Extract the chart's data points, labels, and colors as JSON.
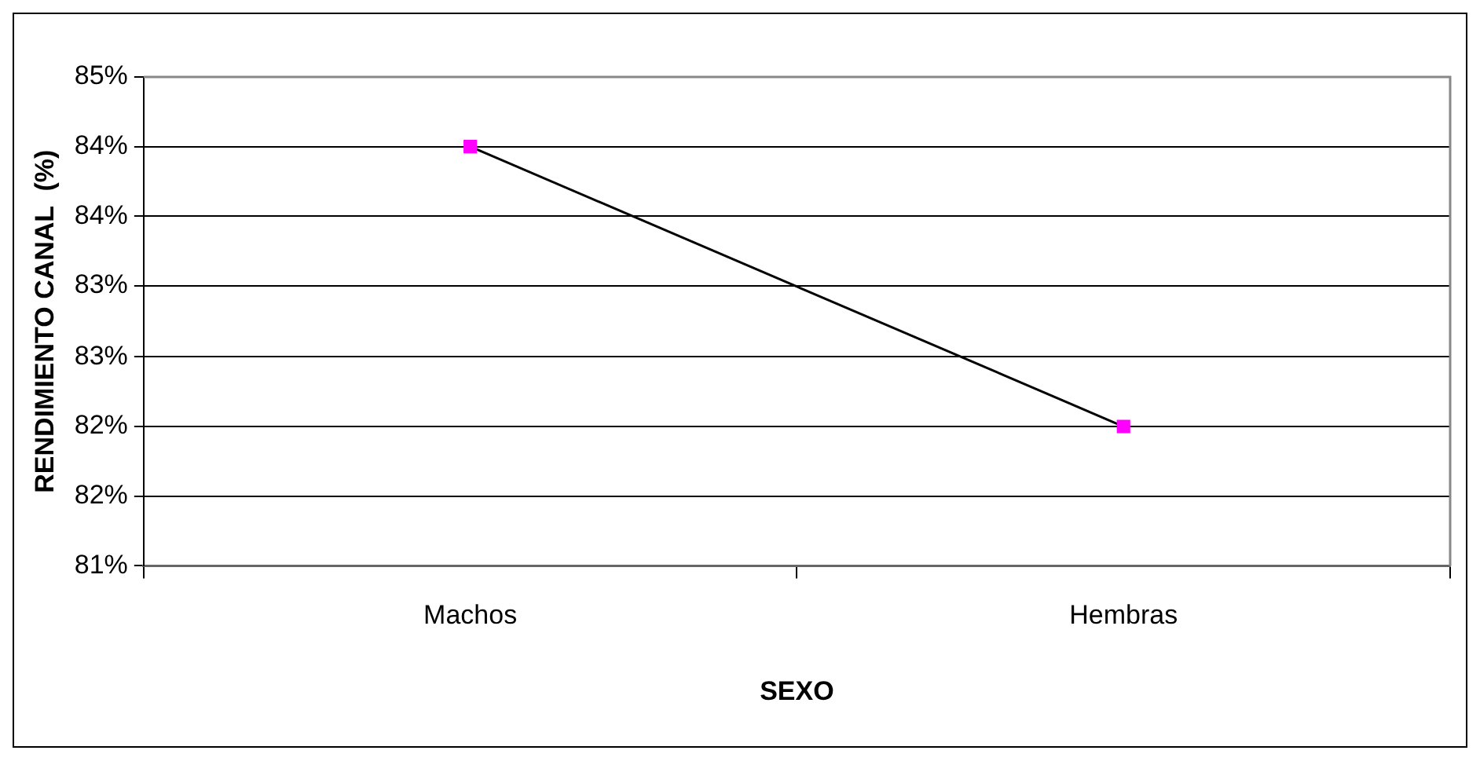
{
  "chart_data": {
    "type": "line",
    "xlabel": "SEXO",
    "ylabel": "RENDIMIENTO CANAL  (%)",
    "categories": [
      "Machos",
      "Hembras"
    ],
    "series": [
      {
        "color": "#ff00ff",
        "values": [
          84.43,
          82.14
        ]
      }
    ],
    "marker": "square",
    "grid": "y",
    "legend": false,
    "ylim": [
      81,
      85
    ],
    "yticks": [
      {
        "value": 81,
        "label": "81%"
      },
      {
        "value": 81.57,
        "label": "82%"
      },
      {
        "value": 82.14,
        "label": "82%"
      },
      {
        "value": 82.71,
        "label": "83%"
      },
      {
        "value": 83.29,
        "label": "83%"
      },
      {
        "value": 83.86,
        "label": "84%"
      },
      {
        "value": 84.43,
        "label": "84%"
      },
      {
        "value": 85,
        "label": "85%"
      }
    ]
  }
}
